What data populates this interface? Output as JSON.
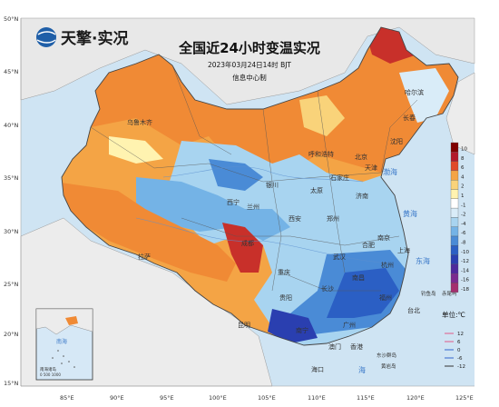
{
  "brand": {
    "logo_text": "天擎·实况"
  },
  "header": {
    "title": "全国近24小时变温实况",
    "timestamp": "2023年03月24日14时 BJT",
    "producer": "信息中心制"
  },
  "axes": {
    "lat_labels": [
      "50°N",
      "45°N",
      "40°N",
      "35°N",
      "30°N",
      "25°N",
      "20°N",
      "15°N"
    ],
    "lon_labels": [
      "85°E",
      "90°E",
      "95°E",
      "100°E",
      "105°E",
      "110°E",
      "115°E",
      "120°E",
      "125°E"
    ]
  },
  "legend": {
    "values": [
      "10",
      "8",
      "6",
      "4",
      "2",
      "1",
      "-1",
      "-2",
      "-4",
      "-6",
      "-8",
      "-10",
      "-12",
      "-14",
      "-16",
      "-18"
    ],
    "colors": [
      "#7f0000",
      "#b2182b",
      "#e0492a",
      "#f4a445",
      "#f9d37a",
      "#fff3b0",
      "#ffffff",
      "#d9ecf8",
      "#a8d4f0",
      "#74b3e6",
      "#4a8bd6",
      "#2b5fc4",
      "#2a3fb0",
      "#4d2a9c",
      "#7a2b8f",
      "#a42f6f"
    ],
    "unit_label": "单位:℃",
    "contour_values": [
      "12",
      "6",
      "0",
      "-6",
      "-12"
    ],
    "contour_colors": [
      "#e05a8a",
      "#e05a8a",
      "#3366cc",
      "#3366cc",
      "#333333"
    ]
  },
  "places": {
    "harbin": "哈尔滨",
    "changchun": "长春",
    "shenyang": "沈阳",
    "urumqi": "乌鲁木齐",
    "hohhot": "呼和浩特",
    "beijing": "北京",
    "tianjin": "天津",
    "shijiazhuang": "石家庄",
    "jinan": "济南",
    "taiyuan": "太原",
    "yinchuan": "银川",
    "xining": "西宁",
    "lanzhou": "兰州",
    "zhengzhou": "郑州",
    "xian": "西安",
    "hefei": "合肥",
    "nanjing": "南京",
    "shanghai": "上海",
    "lhasa": "拉萨",
    "chengdu": "成都",
    "wuhan": "武汉",
    "hangzhou": "杭州",
    "chongqing": "重庆",
    "nanchang": "南昌",
    "changsha": "长沙",
    "fuzhou": "福州",
    "guiyang": "贵阳",
    "taipei": "台北",
    "kunming": "昆明",
    "nanning": "南宁",
    "guangzhou": "广州",
    "hongkong": "香港",
    "macao": "澳门",
    "haikou": "海口",
    "diaoyu": "钓鱼岛",
    "chiwei": "赤尾屿",
    "dongsha": "东沙群岛",
    "huangyan": "黄岩岛",
    "sea_bohai": "渤海",
    "sea_yellow": "黄海",
    "sea_east": "东海",
    "sea_south": "海",
    "inset_sea": "南海",
    "inset_islands": "南海诸岛",
    "inset_scale": "0 500 1000"
  }
}
